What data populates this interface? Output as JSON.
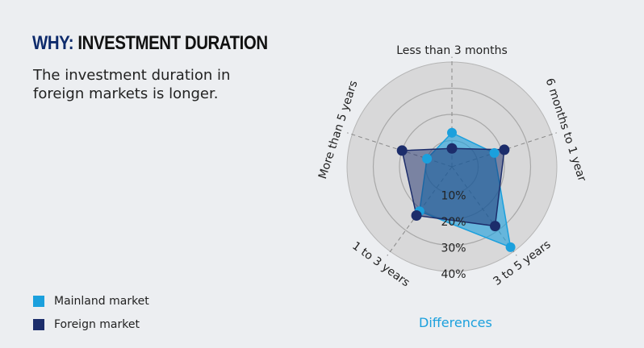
{
  "header": {
    "title_prefix": "WHY:",
    "title": "INVESTMENT DURATION",
    "subtitle": "The investment duration in foreign markets is longer."
  },
  "chart_data": {
    "type": "radar",
    "axes": [
      "Less than 3 months",
      "6 months to 1 year",
      "3 to 5 years",
      "1 to 3 years",
      "More than 5 years"
    ],
    "ticks": [
      "10%",
      "20%",
      "30%",
      "40%"
    ],
    "rmax": 40,
    "series": [
      {
        "name": "Mainland market",
        "color": "#1ba0dd",
        "values": [
          13,
          17,
          38,
          21,
          10
        ]
      },
      {
        "name": "Foreign market",
        "color": "#1c2d6b",
        "values": [
          7,
          21,
          28,
          23,
          20
        ]
      }
    ],
    "legend": "bottom-left"
  },
  "footer": {
    "link": "Differences"
  }
}
